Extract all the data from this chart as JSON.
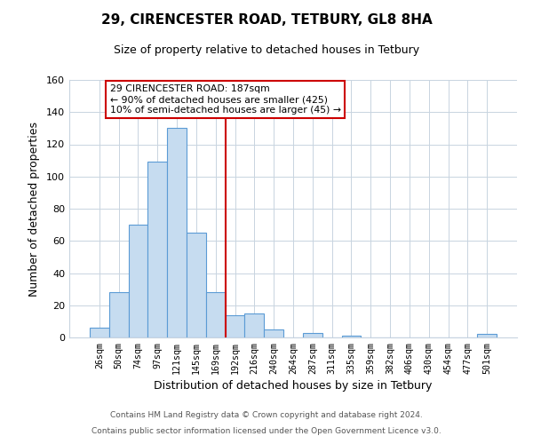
{
  "title": "29, CIRENCESTER ROAD, TETBURY, GL8 8HA",
  "subtitle": "Size of property relative to detached houses in Tetbury",
  "xlabel": "Distribution of detached houses by size in Tetbury",
  "ylabel": "Number of detached properties",
  "bar_labels": [
    "26sqm",
    "50sqm",
    "74sqm",
    "97sqm",
    "121sqm",
    "145sqm",
    "169sqm",
    "192sqm",
    "216sqm",
    "240sqm",
    "264sqm",
    "287sqm",
    "311sqm",
    "335sqm",
    "359sqm",
    "382sqm",
    "406sqm",
    "430sqm",
    "454sqm",
    "477sqm",
    "501sqm"
  ],
  "bar_values": [
    6,
    28,
    70,
    109,
    130,
    65,
    28,
    14,
    15,
    5,
    0,
    3,
    0,
    1,
    0,
    0,
    0,
    0,
    0,
    0,
    2
  ],
  "bar_color": "#c6dcf0",
  "bar_edge_color": "#5b9bd5",
  "vline_x_index": 7,
  "vline_color": "#cc0000",
  "ylim": [
    0,
    160
  ],
  "yticks": [
    0,
    20,
    40,
    60,
    80,
    100,
    120,
    140,
    160
  ],
  "annotation_lines": [
    "29 CIRENCESTER ROAD: 187sqm",
    "← 90% of detached houses are smaller (425)",
    "10% of semi-detached houses are larger (45) →"
  ],
  "footnote1": "Contains HM Land Registry data © Crown copyright and database right 2024.",
  "footnote2": "Contains public sector information licensed under the Open Government Licence v3.0.",
  "background_color": "#ffffff",
  "grid_color": "#c8d4e0"
}
